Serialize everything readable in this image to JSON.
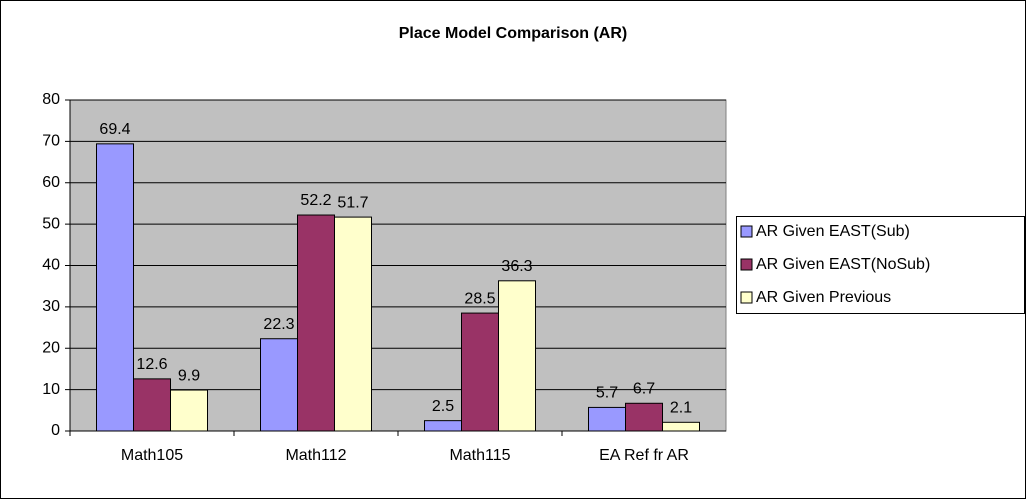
{
  "chart_data": {
    "type": "bar",
    "title": "Place Model Comparison (AR)",
    "categories": [
      "Math105",
      "Math112",
      "Math115",
      "EA Ref fr AR"
    ],
    "series": [
      {
        "name": "AR Given EAST(Sub)",
        "color": "#9999ff",
        "values": [
          69.4,
          22.3,
          2.5,
          5.7
        ]
      },
      {
        "name": "AR Given EAST(NoSub)",
        "color": "#993366",
        "values": [
          12.6,
          52.2,
          28.5,
          6.7
        ]
      },
      {
        "name": "AR Given Previous",
        "color": "#ffffcc",
        "values": [
          9.9,
          51.7,
          36.3,
          2.1
        ]
      }
    ],
    "ylim": [
      0,
      80
    ],
    "yticks": [
      0,
      10,
      20,
      30,
      40,
      50,
      60,
      70,
      80
    ],
    "grid": true,
    "legend": "right"
  }
}
